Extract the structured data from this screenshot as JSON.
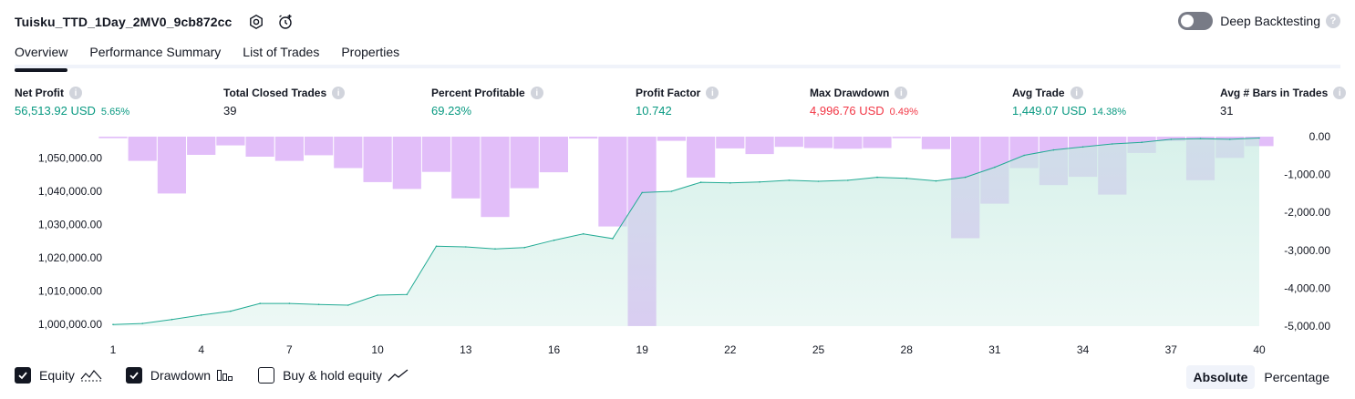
{
  "header": {
    "strategy_name": "Tuisku_TTD_1Day_2MV0_9cb872cc",
    "deep_backtesting_label": "Deep Backtesting",
    "help_glyph": "?"
  },
  "tabs": [
    {
      "label": "Overview"
    },
    {
      "label": "Performance Summary"
    },
    {
      "label": "List of Trades"
    },
    {
      "label": "Properties"
    }
  ],
  "stats": {
    "net_profit": {
      "label": "Net Profit",
      "value": "56,513.92 USD",
      "pct": "5.65%"
    },
    "total_closed_trades": {
      "label": "Total Closed Trades",
      "value": "39"
    },
    "percent_profitable": {
      "label": "Percent Profitable",
      "value": "69.23%"
    },
    "profit_factor": {
      "label": "Profit Factor",
      "value": "10.742"
    },
    "max_drawdown": {
      "label": "Max Drawdown",
      "value": "4,996.76 USD",
      "pct": "0.49%"
    },
    "avg_trade": {
      "label": "Avg Trade",
      "value": "1,449.07 USD",
      "pct": "14.38%"
    },
    "avg_bars": {
      "label": "Avg # Bars in Trades",
      "value": "31"
    }
  },
  "colors": {
    "positive": "#089981",
    "negative": "#f23645",
    "equity_line": "#22ab94",
    "equity_fill": "#c8ebe2",
    "drawdown_bar": "#ce93f5"
  },
  "chart_data": {
    "type": "area",
    "x": [
      1,
      2,
      3,
      4,
      5,
      6,
      7,
      8,
      9,
      10,
      11,
      12,
      13,
      14,
      15,
      16,
      17,
      18,
      19,
      20,
      21,
      22,
      23,
      24,
      25,
      26,
      27,
      28,
      29,
      30,
      31,
      32,
      33,
      34,
      35,
      36,
      37,
      38,
      39,
      40
    ],
    "x_ticks": [
      "1",
      "4",
      "7",
      "10",
      "13",
      "16",
      "19",
      "22",
      "25",
      "28",
      "31",
      "34",
      "37",
      "40"
    ],
    "y_left_ticks": [
      "1,000,000.00",
      "1,010,000.00",
      "1,020,000.00",
      "1,030,000.00",
      "1,040,000.00",
      "1,050,000.00"
    ],
    "y_left_lim": [
      999500,
      1056400
    ],
    "y_right_ticks": [
      "0.00",
      "-1,000.00",
      "-2,000.00",
      "-3,000.00",
      "-4,000.00",
      "-5,000.00"
    ],
    "y_right_lim": [
      -5000,
      0
    ],
    "series": [
      {
        "name": "Equity",
        "axis": "left",
        "values": [
          1000000,
          1000300,
          1001500,
          1002800,
          1004000,
          1006300,
          1006300,
          1006000,
          1005800,
          1008800,
          1009000,
          1023500,
          1023300,
          1022700,
          1023100,
          1025300,
          1027200,
          1025800,
          1039600,
          1040000,
          1042700,
          1042500,
          1042800,
          1043300,
          1043000,
          1043300,
          1044200,
          1043900,
          1043100,
          1044200,
          1047200,
          1050800,
          1052400,
          1053300,
          1054200,
          1054700,
          1055600,
          1055800,
          1055600,
          1056000
        ]
      },
      {
        "name": "Drawdown",
        "axis": "right",
        "values": [
          -40,
          -640,
          -1500,
          -480,
          -230,
          -530,
          -640,
          -490,
          -830,
          -1200,
          -1380,
          -930,
          -1630,
          -2120,
          -1360,
          -940,
          -50,
          -2370,
          -4997,
          -110,
          -1080,
          -310,
          -460,
          -270,
          -300,
          -320,
          -300,
          -40,
          -330,
          -2680,
          -1770,
          -830,
          -1280,
          -1060,
          -1530,
          -430,
          -120,
          -1150,
          -560,
          -250
        ]
      }
    ]
  },
  "legend": {
    "equity": {
      "label": "Equity",
      "checked": true,
      "icon": "equity-line-icon"
    },
    "drawdown": {
      "label": "Drawdown",
      "checked": true,
      "icon": "bars-icon"
    },
    "buy_hold": {
      "label": "Buy & hold equity",
      "checked": false,
      "icon": "trend-icon"
    }
  },
  "modes": {
    "absolute": "Absolute",
    "percentage": "Percentage",
    "active": "Absolute"
  }
}
